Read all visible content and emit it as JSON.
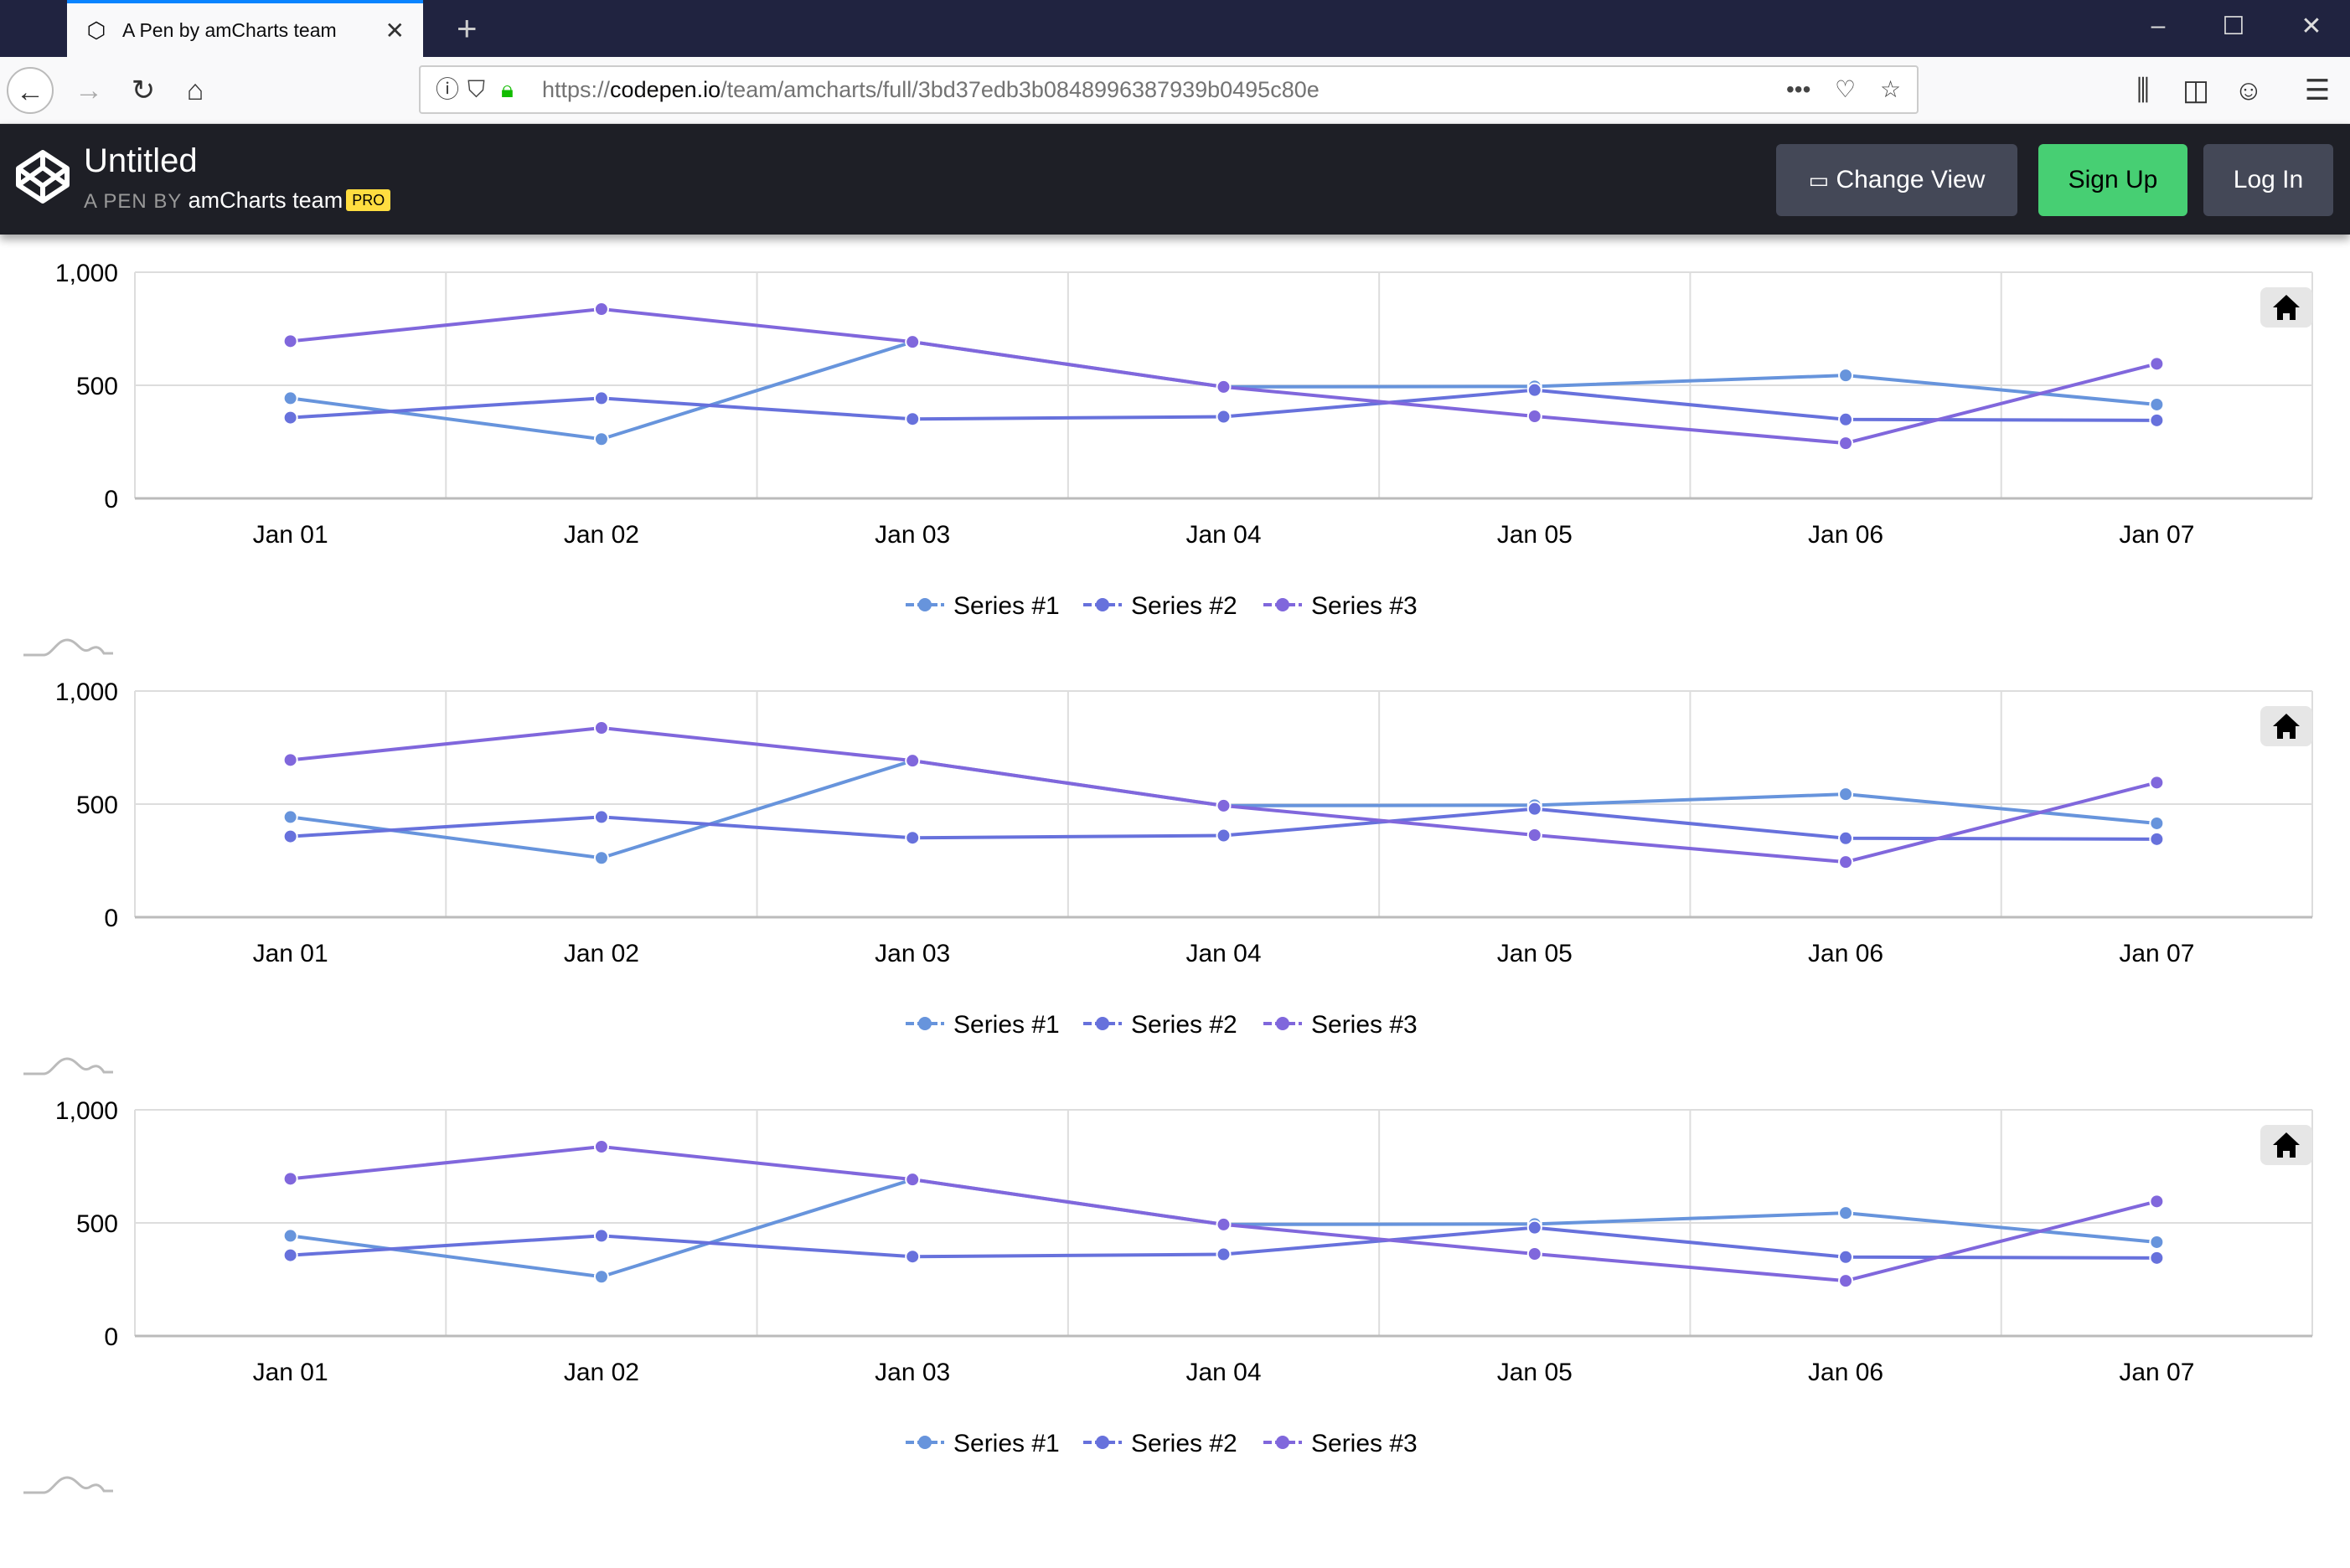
{
  "browser": {
    "tab_title": "A Pen by amCharts team",
    "url_prefix": "https://",
    "url_host": "codepen.io",
    "url_path": "/team/amcharts/full/3bd37edb3b0848996387939b0495c80e"
  },
  "header": {
    "title": "Untitled",
    "by_label": "A PEN BY",
    "author": "amCharts team",
    "badge": "PRO",
    "change_view": "Change View",
    "sign_up": "Sign Up",
    "log_in": "Log In"
  },
  "colors": {
    "series1": "#6794dc",
    "series2": "#6771dc",
    "series3": "#8067dc",
    "signup": "#47cf73",
    "header_bg": "#1e1f26"
  },
  "chart_data": [
    {
      "type": "line",
      "categories": [
        "Jan 01",
        "Jan 02",
        "Jan 03",
        "Jan 04",
        "Jan 05",
        "Jan 06",
        "Jan 07"
      ],
      "yticks": [
        "0",
        "500",
        "1,000"
      ],
      "ylim": [
        0,
        1000
      ],
      "grid": true,
      "legend": "bottom",
      "series": [
        {
          "name": "Series #1",
          "values": [
            443,
            262,
            692,
            493,
            495,
            544,
            415
          ]
        },
        {
          "name": "Series #2",
          "values": [
            357,
            443,
            351,
            361,
            479,
            349,
            345
          ]
        },
        {
          "name": "Series #3",
          "values": [
            695,
            837,
            692,
            493,
            363,
            244,
            595
          ]
        }
      ]
    },
    {
      "type": "line",
      "categories": [
        "Jan 01",
        "Jan 02",
        "Jan 03",
        "Jan 04",
        "Jan 05",
        "Jan 06",
        "Jan 07"
      ],
      "yticks": [
        "0",
        "500",
        "1,000"
      ],
      "ylim": [
        0,
        1000
      ],
      "grid": true,
      "legend": "bottom",
      "series": [
        {
          "name": "Series #1",
          "values": [
            443,
            262,
            692,
            493,
            495,
            544,
            415
          ]
        },
        {
          "name": "Series #2",
          "values": [
            357,
            443,
            351,
            361,
            479,
            349,
            345
          ]
        },
        {
          "name": "Series #3",
          "values": [
            695,
            837,
            692,
            493,
            363,
            244,
            595
          ]
        }
      ]
    },
    {
      "type": "line",
      "categories": [
        "Jan 01",
        "Jan 02",
        "Jan 03",
        "Jan 04",
        "Jan 05",
        "Jan 06",
        "Jan 07"
      ],
      "yticks": [
        "0",
        "500",
        "1,000"
      ],
      "ylim": [
        0,
        1000
      ],
      "grid": true,
      "legend": "bottom",
      "series": [
        {
          "name": "Series #1",
          "values": [
            443,
            262,
            692,
            493,
            495,
            544,
            415
          ]
        },
        {
          "name": "Series #2",
          "values": [
            357,
            443,
            351,
            361,
            479,
            349,
            345
          ]
        },
        {
          "name": "Series #3",
          "values": [
            695,
            837,
            692,
            493,
            363,
            244,
            595
          ]
        }
      ]
    }
  ]
}
